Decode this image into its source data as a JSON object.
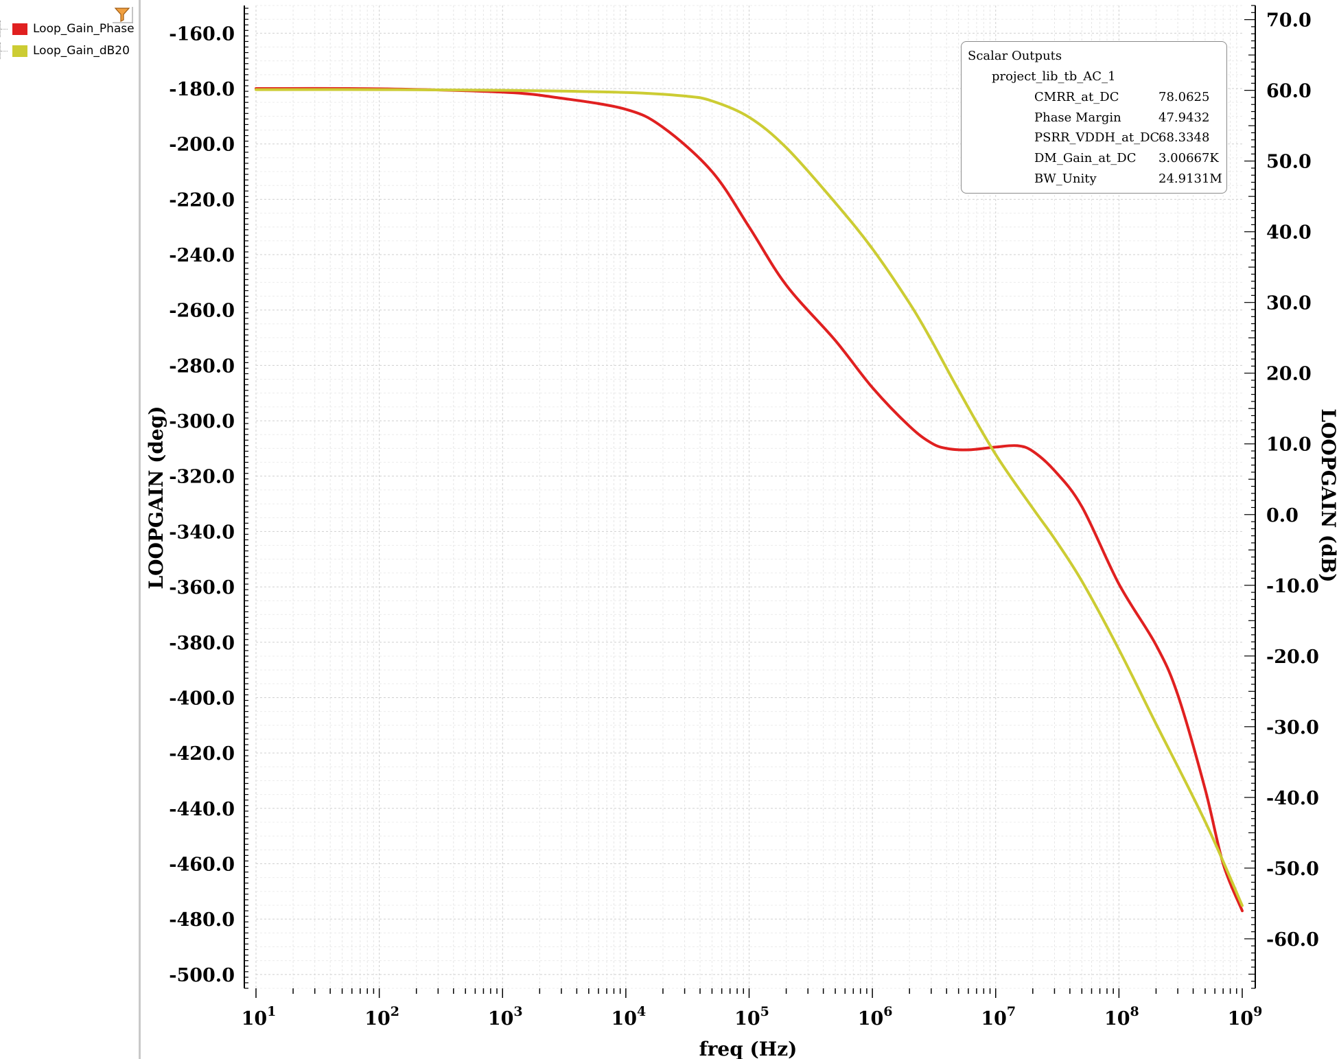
{
  "legend": {
    "items": [
      {
        "label": "Loop_Gain_Phase",
        "color": "#e02020"
      },
      {
        "label": "Loop_Gain_dB20",
        "color": "#cccc33"
      }
    ]
  },
  "filter_icon": "filter-icon",
  "scalar_outputs": {
    "title": "Scalar Outputs",
    "test": "project_lib_tb_AC_1",
    "rows": [
      {
        "name": "CMRR_at_DC",
        "value": "78.0625"
      },
      {
        "name": "Phase Margin",
        "value": "47.9432"
      },
      {
        "name": "PSRR_VDDH_at_DC",
        "value": "68.3348"
      },
      {
        "name": "DM_Gain_at_DC",
        "value": "3.00667K"
      },
      {
        "name": "BW_Unity",
        "value": "24.9131M"
      }
    ]
  },
  "chart_data": {
    "type": "line",
    "xlabel": "freq (Hz)",
    "ylabel_left": "LOOPGAIN (deg)",
    "ylabel_right": "LOOPGAIN (dB)",
    "x_scale": "log",
    "xlim": [
      10,
      1000000000
    ],
    "x_ticks": [
      {
        "base": "10",
        "exp": "1"
      },
      {
        "base": "10",
        "exp": "2"
      },
      {
        "base": "10",
        "exp": "3"
      },
      {
        "base": "10",
        "exp": "4"
      },
      {
        "base": "10",
        "exp": "5"
      },
      {
        "base": "10",
        "exp": "6"
      },
      {
        "base": "10",
        "exp": "7"
      },
      {
        "base": "10",
        "exp": "8"
      },
      {
        "base": "10",
        "exp": "9"
      }
    ],
    "ylim_left": [
      -505,
      -150
    ],
    "ylim_right": [
      -67,
      72
    ],
    "y_ticks_left": [
      "-160.0",
      "-180.0",
      "-200.0",
      "-220.0",
      "-240.0",
      "-260.0",
      "-280.0",
      "-300.0",
      "-320.0",
      "-340.0",
      "-360.0",
      "-380.0",
      "-400.0",
      "-420.0",
      "-440.0",
      "-460.0",
      "-480.0",
      "-500.0"
    ],
    "y_ticks_right": [
      "70.0",
      "60.0",
      "50.0",
      "40.0",
      "30.0",
      "20.0",
      "10.0",
      "0.0",
      "-10.0",
      "-20.0",
      "-30.0",
      "-40.0",
      "-50.0",
      "-60.0"
    ],
    "grid": true,
    "legend": "left-panel",
    "series": [
      {
        "name": "Loop_Gain_Phase",
        "axis": "left",
        "color": "#e02020",
        "x": [
          10,
          100,
          1000,
          3000,
          10000,
          20000,
          50000,
          100000,
          200000,
          500000,
          1000000,
          2000000,
          3000000,
          4000000,
          6000000,
          10000000,
          15000000,
          20000000,
          30000000,
          50000000,
          100000000,
          200000000,
          300000000,
          500000000,
          700000000,
          1000000000
        ],
        "y": [
          -180,
          -180.1,
          -181.3,
          -183.5,
          -187.5,
          -194,
          -210,
          -230,
          -251,
          -271,
          -288,
          -302,
          -308,
          -310,
          -310.5,
          -309.5,
          -309,
          -311,
          -318,
          -331,
          -359,
          -381,
          -399,
          -433,
          -460,
          -477
        ]
      },
      {
        "name": "Loop_Gain_dB20",
        "axis": "right",
        "color": "#cccc33",
        "x": [
          10,
          100,
          1000,
          10000,
          30000,
          50000,
          100000,
          200000,
          500000,
          1000000,
          2000000,
          3000000,
          5000000,
          10000000,
          20000000,
          30000000,
          50000000,
          100000000,
          200000000,
          500000000,
          1000000000
        ],
        "y": [
          60.1,
          60.1,
          60.0,
          59.7,
          59.2,
          58.5,
          56.2,
          51.9,
          44.1,
          37.6,
          29.9,
          24.7,
          17.6,
          8.5,
          0.9,
          -3.4,
          -9.4,
          -19.1,
          -29.6,
          -43.4,
          -55.3
        ]
      }
    ]
  }
}
